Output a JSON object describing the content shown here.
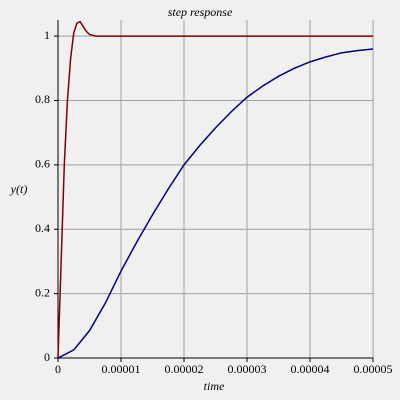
{
  "chart_data": {
    "type": "line",
    "title": "step response",
    "x_label": "time",
    "y_label": "y(t)",
    "xlim": [
      0,
      5e-05
    ],
    "ylim": [
      0,
      1.05
    ],
    "xticks": [
      0,
      1e-05,
      2e-05,
      3e-05,
      4e-05,
      5e-05
    ],
    "yticks": [
      0,
      0.2,
      0.4,
      0.6,
      0.8,
      1
    ],
    "grid": true,
    "series": [
      {
        "color": "#800000",
        "x": [
          0,
          5e-07,
          1e-06,
          1.5e-06,
          2e-06,
          2.5e-06,
          3e-06,
          3.5e-06,
          4e-06,
          4.5e-06,
          5e-06,
          6e-06,
          5e-05
        ],
        "values": [
          0,
          0.3,
          0.6,
          0.8,
          0.93,
          1.01,
          1.04,
          1.045,
          1.03,
          1.015,
          1.005,
          1.0,
          1.0
        ]
      },
      {
        "color": "#000080",
        "x": [
          0,
          2.5e-06,
          5e-06,
          7.5e-06,
          1e-05,
          1.25e-05,
          1.5e-05,
          1.75e-05,
          2e-05,
          2.25e-05,
          2.5e-05,
          2.75e-05,
          3e-05,
          3.25e-05,
          3.5e-05,
          3.75e-05,
          4e-05,
          4.25e-05,
          4.5e-05,
          4.75e-05,
          5e-05
        ],
        "values": [
          0,
          0.025,
          0.085,
          0.17,
          0.27,
          0.36,
          0.445,
          0.525,
          0.6,
          0.66,
          0.715,
          0.765,
          0.81,
          0.845,
          0.875,
          0.9,
          0.92,
          0.935,
          0.948,
          0.955,
          0.96
        ]
      }
    ]
  }
}
